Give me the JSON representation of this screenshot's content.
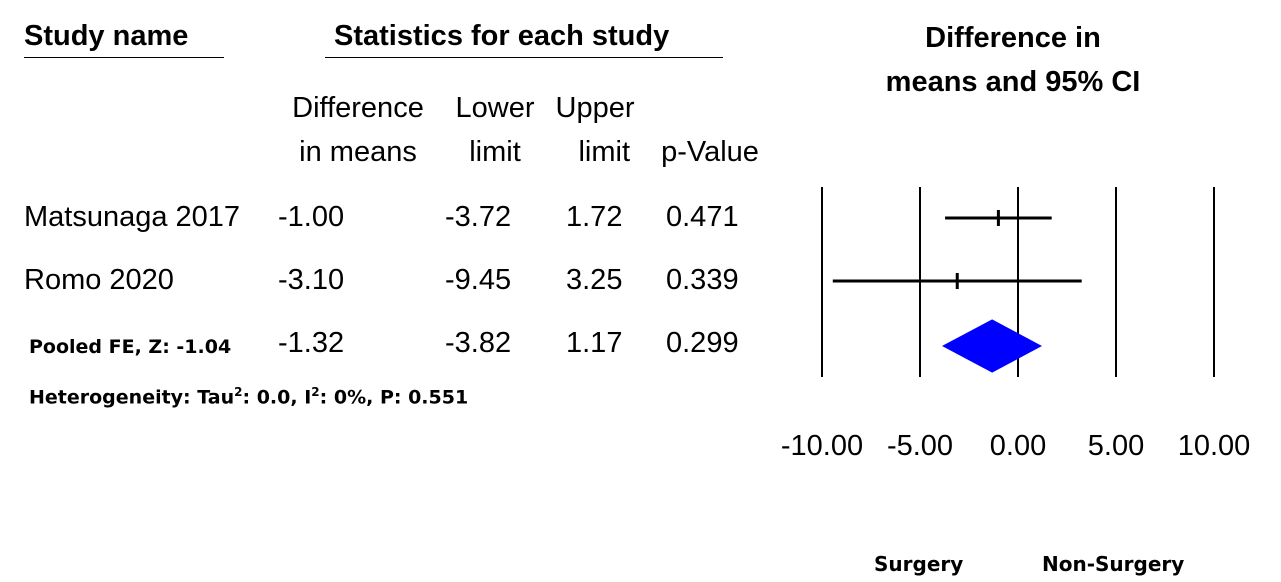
{
  "headers": {
    "study_name": "Study name",
    "statistics": "Statistics for each study",
    "ci_title_line1": "Difference in",
    "ci_title_line2": "means and 95% CI"
  },
  "columns": {
    "diff_line1": "Difference",
    "diff_line2": "in means",
    "lower_line1": "Lower",
    "lower_line2": "limit",
    "upper_line1": "Upper",
    "upper_line2": "limit",
    "pvalue": "p-Value"
  },
  "rows": [
    {
      "study": "Matsunaga 2017",
      "diff": "-1.00",
      "lower": "-3.72",
      "upper": "1.72",
      "p": "0.471"
    },
    {
      "study": "Romo 2020",
      "diff": "-3.10",
      "lower": "-9.45",
      "upper": "3.25",
      "p": "0.339"
    }
  ],
  "pooled": {
    "label": "Pooled FE, Z: -1.04",
    "diff": "-1.32",
    "lower": "-3.82",
    "upper": "1.17",
    "p": "0.299"
  },
  "heterogeneity": {
    "prefix": "Heterogeneity: Tau",
    "sup1": "2",
    "mid": ": 0.0, I",
    "sup2": "2",
    "suffix": ": 0%, P: 0.551"
  },
  "footer": {
    "left": "Surgery",
    "right": "Non-Surgery"
  },
  "chart_data": {
    "type": "scatter",
    "title": "Difference in means and 95% CI",
    "xlim": [
      -10,
      10
    ],
    "ticks": [
      -10,
      -5,
      0,
      5,
      10
    ],
    "tick_labels": [
      "-10.00",
      "-5.00",
      "0.00",
      "5.00",
      "10.00"
    ],
    "studies": [
      {
        "name": "Matsunaga 2017",
        "estimate": -1.0,
        "lower": -3.72,
        "upper": 1.72
      },
      {
        "name": "Romo 2020",
        "estimate": -3.1,
        "lower": -9.45,
        "upper": 3.25
      }
    ],
    "pooled": {
      "estimate": -1.32,
      "lower": -3.82,
      "upper": 1.17,
      "color": "#0000ff"
    },
    "favours_left": "Surgery",
    "favours_right": "Non-Surgery"
  }
}
